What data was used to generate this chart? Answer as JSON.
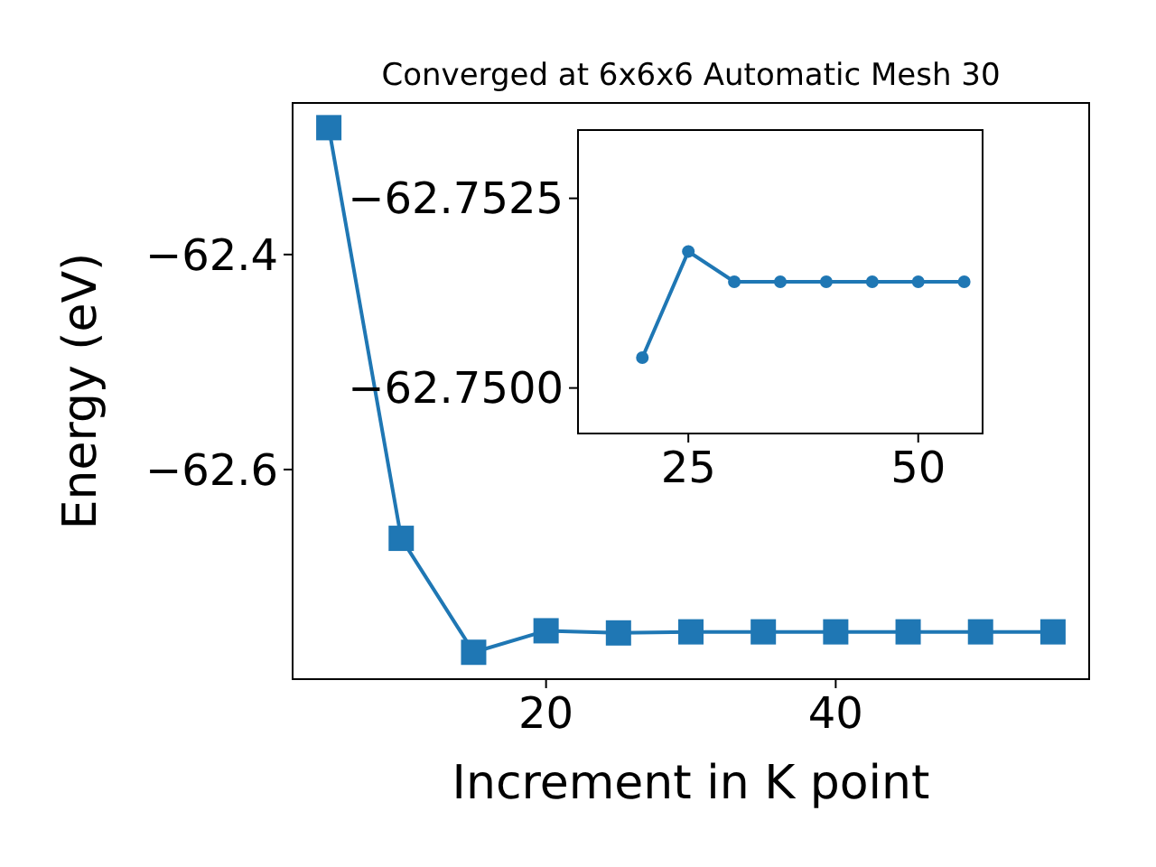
{
  "chart_data": [
    {
      "type": "line",
      "title": "Converged at 6x6x6 Automatic Mesh 30",
      "xlabel": "Increment in K point",
      "ylabel": "Energy (eV)",
      "x": [
        5,
        10,
        15,
        20,
        25,
        30,
        35,
        40,
        45,
        50,
        55
      ],
      "series": [
        {
          "color": "#1f77b4",
          "values": [
            -62.282,
            -62.664,
            -62.77,
            -62.75,
            -62.752,
            -62.751,
            -62.751,
            -62.751,
            -62.751,
            -62.751,
            -62.751
          ]
        }
      ],
      "xlim": [
        2.5,
        57.5
      ],
      "ylim": [
        -62.795,
        -62.259
      ],
      "xticks": [
        20,
        40
      ],
      "yticks": [
        -62.4,
        -62.6
      ],
      "marker": "square",
      "grid": false
    },
    {
      "type": "line",
      "x": [
        20,
        25,
        30,
        35,
        40,
        45,
        50,
        55
      ],
      "series": [
        {
          "color": "#1f77b4",
          "values": [
            -62.7504,
            -62.7518,
            -62.7514,
            -62.7514,
            -62.7514,
            -62.7514,
            -62.7514,
            -62.7514
          ]
        }
      ],
      "xlim": [
        13,
        57
      ],
      "ylim": [
        -62.7494,
        -62.7534
      ],
      "xticks": [
        25,
        50
      ],
      "yticks": [
        {
          "value": -62.7525,
          "label": "−62.7525"
        },
        {
          "value": -62.75,
          "label": "−62.7500"
        }
      ],
      "marker": "circle",
      "grid": false
    }
  ]
}
